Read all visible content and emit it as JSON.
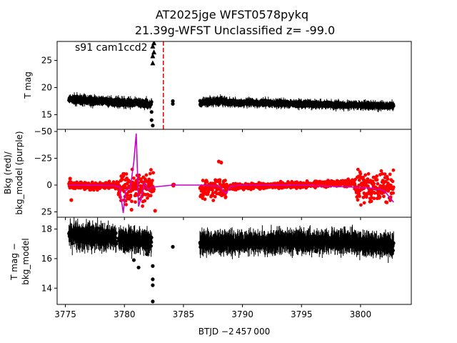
{
  "figure": {
    "title_line1": "AT2025jge  WFST0578pykq",
    "title_line2": "21.39g-WFST Unclassified z= -99.0",
    "xlabel": "BTJD −2 457 000"
  },
  "chart_data": {
    "type": "scatter",
    "xlim": [
      3774.3,
      3804.3
    ],
    "xticks": [
      3775,
      3780,
      3785,
      3790,
      3795,
      3800
    ],
    "marker_line_x": 3783.3,
    "panels": [
      {
        "name": "mag",
        "ylabel": "T mag",
        "ylim": [
          28.5,
          12.3
        ],
        "yticks": [
          15,
          20,
          25
        ],
        "annotation": "s91 cam1ccd2",
        "series": [
          {
            "name": "T mag",
            "color": "#000000",
            "segments": [
              {
                "x": [
                  3775.3,
                  3782.3
                ],
                "y": [
                  17.8,
                  17.0
                ],
                "spread": 0.8
              },
              {
                "x": [
                  3786.4,
                  3788.5
                ],
                "y": [
                  17.2,
                  17.6
                ],
                "spread": 0.8
              },
              {
                "x": [
                  3788.5,
                  3802.8
                ],
                "y": [
                  17.3,
                  16.6
                ],
                "spread": 0.6
              }
            ],
            "outliers": [
              {
                "x": 3782.3,
                "y": 15.5
              },
              {
                "x": 3782.3,
                "y": 14.0
              },
              {
                "x": 3782.4,
                "y": 13.0
              },
              {
                "x": 3782.4,
                "y": 24.5
              },
              {
                "x": 3782.4,
                "y": 25.8
              },
              {
                "x": 3782.5,
                "y": 26.5
              },
              {
                "x": 3782.4,
                "y": 27.6
              },
              {
                "x": 3782.5,
                "y": 28.2
              },
              {
                "x": 3784.1,
                "y": 17.0
              },
              {
                "x": 3784.1,
                "y": 17.5
              },
              {
                "x": 3781.5,
                "y": 16.7
              }
            ]
          }
        ]
      },
      {
        "name": "bkg",
        "ylabel_line1": "Bkg (red)/",
        "ylabel_line2": "bkg_model (purple)",
        "ylim": [
          -52,
          30
        ],
        "yticks": [
          25,
          0,
          -25,
          -50
        ],
        "series": [
          {
            "name": "Bkg",
            "color": "#ff0000",
            "segments": [
              {
                "x": [
                  3775.3,
                  3779.5
                ],
                "y": [
                  0.5,
                  0.5
                ],
                "spread": 5
              },
              {
                "x": [
                  3779.5,
                  3782.5
                ],
                "y": [
                  2.0,
                  2.0
                ],
                "spread": 22
              },
              {
                "x": [
                  3784.1,
                  3784.2
                ],
                "y": [
                  0,
                  0
                ],
                "spread": 2
              },
              {
                "x": [
                  3786.4,
                  3788.6
                ],
                "y": [
                  5,
                  3
                ],
                "spread": 14
              },
              {
                "x": [
                  3788.6,
                  3799.5
                ],
                "y": [
                  2,
                  -2
                ],
                "spread": 4
              },
              {
                "x": [
                  3799.5,
                  3802.8
                ],
                "y": [
                  3,
                  2
                ],
                "spread": 20
              }
            ],
            "outliers": [
              {
                "x": 3788.0,
                "y": -22
              },
              {
                "x": 3788.2,
                "y": -21
              },
              {
                "x": 3775.5,
                "y": 14
              },
              {
                "x": 3775.4,
                "y": -6
              },
              {
                "x": 3780.6,
                "y": 23
              },
              {
                "x": 3782.6,
                "y": 24
              }
            ]
          },
          {
            "name": "bkg_model",
            "color": "#cc00cc",
            "line": {
              "x": [
                3775.3,
                3779.2,
                3779.6,
                3779.9,
                3780.1,
                3780.5,
                3780.8,
                3781.0,
                3781.2,
                3781.4,
                3781.7,
                3782.0,
                3782.3,
                3784.1,
                3786.4,
                3788.0,
                3788.6,
                3789.0,
                3790.0,
                3795.0,
                3799.5,
                3801.0,
                3802.0,
                3802.5,
                3802.8
              ],
              "y": [
                0,
                0.5,
                2,
                26,
                5,
                3,
                -22,
                -48,
                20,
                12,
                -2,
                4,
                2,
                0,
                0,
                1,
                8,
                1,
                0,
                0,
                2,
                3,
                5,
                12,
                16
              ]
            }
          }
        ]
      },
      {
        "name": "resid",
        "ylabel_line1": "T mag −",
        "ylabel_line2": "bkg_model",
        "ylim": [
          18.8,
          12.9
        ],
        "yticks": [
          14,
          16,
          18
        ],
        "series": [
          {
            "name": "T mag − bkg_model",
            "color": "#000000",
            "segments": [
              {
                "x": [
                  3775.3,
                  3779.3
                ],
                "y": [
                  17.6,
                  17.4
                ],
                "spread": 0.7
              },
              {
                "x": [
                  3779.5,
                  3782.3
                ],
                "y": [
                  17.3,
                  17.2
                ],
                "spread": 0.6
              },
              {
                "x": [
                  3786.4,
                  3788.5
                ],
                "y": [
                  17.1,
                  17.1
                ],
                "spread": 0.5
              },
              {
                "x": [
                  3788.5,
                  3799.5
                ],
                "y": [
                  17.1,
                  17.2
                ],
                "spread": 0.5
              },
              {
                "x": [
                  3799.5,
                  3802.8
                ],
                "y": [
                  17.0,
                  16.9
                ],
                "spread": 0.5
              }
            ],
            "outliers": [
              {
                "x": 3782.4,
                "y": 13.1
              },
              {
                "x": 3782.4,
                "y": 14.2
              },
              {
                "x": 3782.4,
                "y": 14.6
              },
              {
                "x": 3782.4,
                "y": 15.5
              },
              {
                "x": 3781.2,
                "y": 15.4
              },
              {
                "x": 3781.9,
                "y": 16.3
              },
              {
                "x": 3782.1,
                "y": 16.8
              },
              {
                "x": 3780.8,
                "y": 15.9
              },
              {
                "x": 3784.1,
                "y": 16.8
              },
              {
                "x": 3796.2,
                "y": 16.5
              },
              {
                "x": 3802.7,
                "y": 16.9
              },
              {
                "x": 3779.3,
                "y": 17.0
              }
            ]
          }
        ]
      }
    ]
  }
}
